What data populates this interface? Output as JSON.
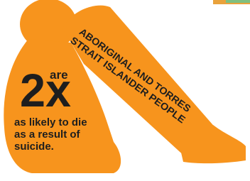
{
  "figure": {
    "heading_lines": [
      "ABORIGINAL AND TORRES",
      "STRAIT ISLANDER PEOPLE"
    ],
    "multiplier": "2x",
    "multiplier_suffix": "are",
    "caption_lines": [
      "as likely to die",
      "as a result of",
      "suicide."
    ]
  }
}
